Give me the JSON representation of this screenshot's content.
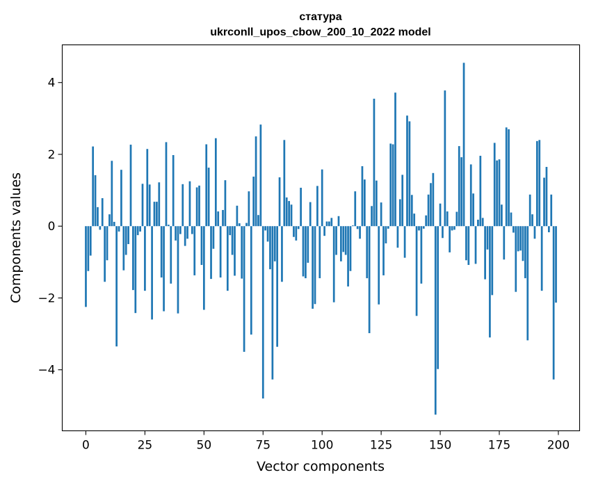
{
  "chart_data": {
    "type": "bar",
    "title_line1": "статура",
    "title_line2": "ukrconll_upos_cbow_200_10_2022 model",
    "xlabel": "Vector components",
    "ylabel": "Components values",
    "xlim": [
      -10,
      209
    ],
    "ylim": [
      -5.7,
      5.05
    ],
    "xticks": [
      0,
      25,
      50,
      75,
      100,
      125,
      150,
      175,
      200
    ],
    "xtick_labels": [
      "0",
      "25",
      "50",
      "75",
      "100",
      "125",
      "150",
      "175",
      "200"
    ],
    "yticks": [
      4,
      2,
      0,
      -2,
      -4
    ],
    "ytick_labels": [
      "4",
      "2",
      "0",
      "−2",
      "−4"
    ],
    "bar_color": "#1f77b4",
    "grid": false,
    "values": [
      -2.25,
      -1.25,
      -0.82,
      2.22,
      1.42,
      0.53,
      -0.1,
      0.78,
      -1.55,
      -0.95,
      0.33,
      1.82,
      0.12,
      -3.35,
      -0.15,
      1.57,
      -1.23,
      -0.8,
      -0.5,
      2.27,
      -1.78,
      -2.42,
      -0.25,
      -0.15,
      1.18,
      -1.8,
      2.15,
      1.16,
      -2.6,
      0.68,
      0.68,
      1.22,
      -1.43,
      -2.37,
      2.34,
      0.04,
      -1.6,
      1.98,
      -0.4,
      -2.43,
      -0.22,
      1.17,
      -0.55,
      -0.35,
      1.25,
      -0.22,
      -1.37,
      1.08,
      1.13,
      -1.08,
      -2.33,
      2.28,
      1.63,
      -1.47,
      -0.63,
      2.45,
      0.41,
      -1.43,
      0.45,
      1.28,
      -1.8,
      -0.25,
      -0.8,
      -1.38,
      0.57,
      0.08,
      -1.46,
      -3.5,
      0.09,
      0.97,
      -3.02,
      1.38,
      2.5,
      0.31,
      2.83,
      -4.8,
      -0.12,
      -0.43,
      -1.2,
      -4.27,
      -0.98,
      -3.36,
      1.36,
      -1.55,
      2.4,
      0.8,
      0.7,
      0.6,
      -0.3,
      -0.4,
      -0.08,
      1.07,
      -1.4,
      -1.45,
      -1.02,
      0.67,
      -2.3,
      -2.17,
      1.12,
      -1.45,
      1.58,
      -0.27,
      0.13,
      0.13,
      0.23,
      -2.12,
      -0.8,
      0.28,
      -0.98,
      -0.72,
      -0.8,
      -1.68,
      -1.25,
      0.02,
      0.97,
      -0.08,
      -0.35,
      1.67,
      1.3,
      -1.45,
      -2.98,
      0.56,
      3.55,
      1.27,
      -2.18,
      0.66,
      -1.37,
      -0.48,
      -0.07,
      2.3,
      2.28,
      3.72,
      -0.6,
      0.75,
      1.43,
      -0.88,
      3.08,
      2.92,
      0.87,
      0.35,
      -2.5,
      -0.12,
      -1.6,
      -0.07,
      0.3,
      0.88,
      1.2,
      1.48,
      -5.25,
      -3.98,
      0.63,
      -0.33,
      3.78,
      0.41,
      -0.73,
      -0.12,
      -0.1,
      0.4,
      2.23,
      1.92,
      4.55,
      -0.95,
      -1.08,
      1.72,
      0.91,
      -1.05,
      0.18,
      1.96,
      0.23,
      -1.48,
      -0.65,
      -3.1,
      -1.92,
      2.32,
      1.83,
      1.86,
      0.6,
      -0.93,
      2.75,
      2.7,
      0.38,
      -0.18,
      -1.83,
      -0.7,
      -0.68,
      -0.97,
      -1.45,
      -3.18,
      0.88,
      0.33,
      -0.35,
      2.37,
      2.4,
      -1.8,
      1.35,
      1.65,
      -0.17,
      0.88,
      -4.27,
      -2.13
    ]
  }
}
